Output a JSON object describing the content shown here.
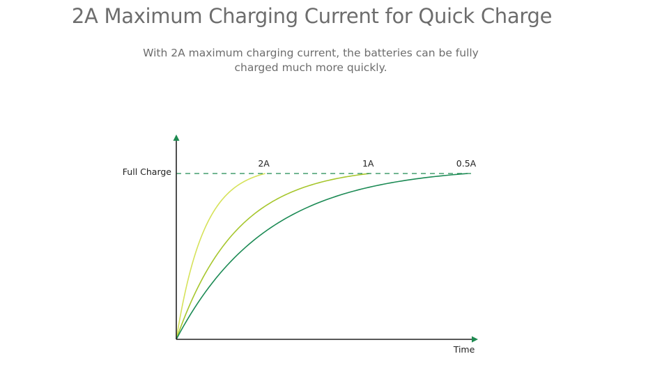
{
  "page": {
    "title": "2A Maximum Charging Current for Quick Charge",
    "subtitle": "With 2A maximum charging current, the batteries can be fully charged much more quickly."
  },
  "chart_data": {
    "type": "line",
    "title": "",
    "xlabel": "Time",
    "ylabel": "",
    "reference_line": {
      "label": "Full Charge",
      "value": 1.0,
      "style": "dashed",
      "color": "#1e8a50"
    },
    "axis_color": "#1e8a50",
    "xlim": [
      0,
      1
    ],
    "ylim": [
      0,
      1.2
    ],
    "series": [
      {
        "name": "2A",
        "color": "#d6e25a",
        "time_to_full": 0.29
      },
      {
        "name": "1A",
        "color": "#a6c62c",
        "time_to_full": 0.63
      },
      {
        "name": "0.5A",
        "color": "#1b8a54",
        "time_to_full": 0.95
      }
    ]
  }
}
